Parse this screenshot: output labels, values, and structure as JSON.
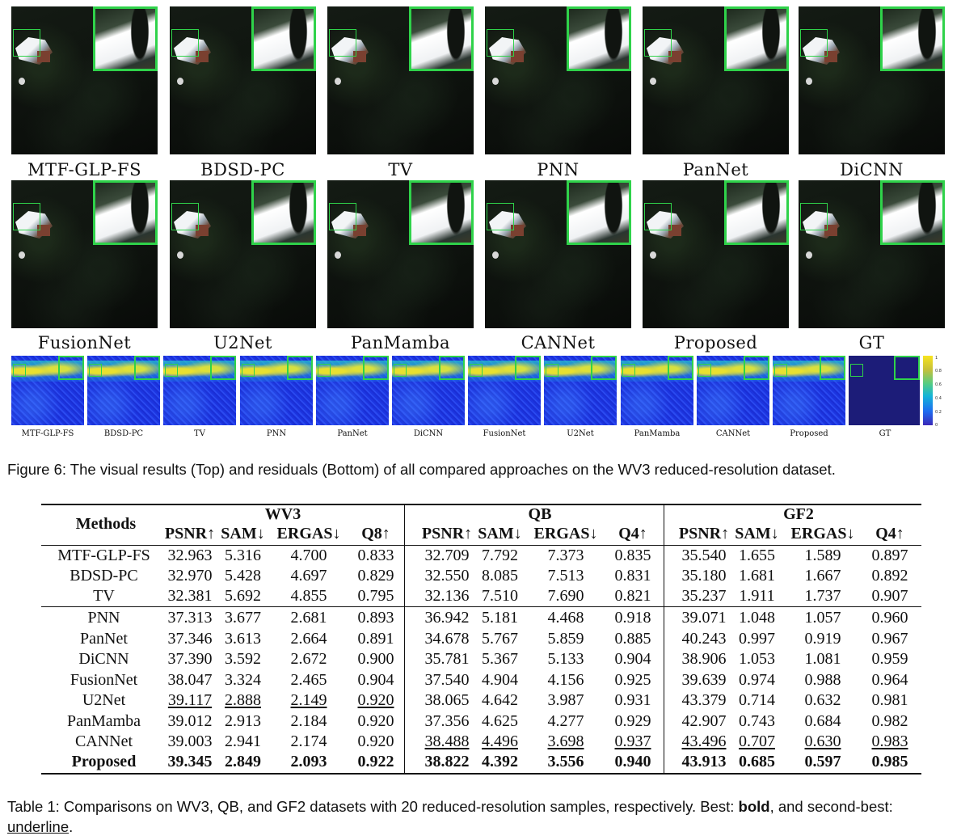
{
  "figure": {
    "visual_row1_labels": [
      "MTF-GLP-FS",
      "BDSD-PC",
      "TV",
      "PNN",
      "PanNet",
      "DiCNN"
    ],
    "visual_row2_labels": [
      "FusionNet",
      "U2Net",
      "PanMamba",
      "CANNet",
      "Proposed",
      "GT"
    ],
    "residual_labels": [
      "MTF-GLP-FS",
      "BDSD-PC",
      "TV",
      "PNN",
      "PanNet",
      "DiCNN",
      "FusionNet",
      "U2Net",
      "PanMamba",
      "CANNet",
      "Proposed",
      "GT"
    ],
    "colorbar_ticks": [
      "1",
      "0.8",
      "0.6",
      "0.4",
      "0.2",
      "0"
    ],
    "caption": "Figure 6: The visual results (Top) and residuals (Bottom) of all compared approaches on the WV3 reduced-resolution dataset."
  },
  "table": {
    "methods_header": "Methods",
    "groups": [
      {
        "name": "WV3",
        "metrics": [
          "PSNR↑",
          "SAM↓",
          "ERGAS↓",
          "Q8↑"
        ]
      },
      {
        "name": "QB",
        "metrics": [
          "PSNR↑",
          "SAM↓",
          "ERGAS↓",
          "Q4↑"
        ]
      },
      {
        "name": "GF2",
        "metrics": [
          "PSNR↑",
          "SAM↓",
          "ERGAS↓",
          "Q4↑"
        ]
      }
    ],
    "rows": [
      {
        "method": "MTF-GLP-FS",
        "values": [
          "32.963",
          "5.316",
          "4.700",
          "0.833",
          "32.709",
          "7.792",
          "7.373",
          "0.835",
          "35.540",
          "1.655",
          "1.589",
          "0.897"
        ]
      },
      {
        "method": "BDSD-PC",
        "values": [
          "32.970",
          "5.428",
          "4.697",
          "0.829",
          "32.550",
          "8.085",
          "7.513",
          "0.831",
          "35.180",
          "1.681",
          "1.667",
          "0.892"
        ]
      },
      {
        "method": "TV",
        "values": [
          "32.381",
          "5.692",
          "4.855",
          "0.795",
          "32.136",
          "7.510",
          "7.690",
          "0.821",
          "35.237",
          "1.911",
          "1.737",
          "0.907"
        ]
      },
      {
        "method": "PNN",
        "values": [
          "37.313",
          "3.677",
          "2.681",
          "0.893",
          "36.942",
          "5.181",
          "4.468",
          "0.918",
          "39.071",
          "1.048",
          "1.057",
          "0.960"
        ]
      },
      {
        "method": "PanNet",
        "values": [
          "37.346",
          "3.613",
          "2.664",
          "0.891",
          "34.678",
          "5.767",
          "5.859",
          "0.885",
          "40.243",
          "0.997",
          "0.919",
          "0.967"
        ]
      },
      {
        "method": "DiCNN",
        "values": [
          "37.390",
          "3.592",
          "2.672",
          "0.900",
          "35.781",
          "5.367",
          "5.133",
          "0.904",
          "38.906",
          "1.053",
          "1.081",
          "0.959"
        ]
      },
      {
        "method": "FusionNet",
        "values": [
          "38.047",
          "3.324",
          "2.465",
          "0.904",
          "37.540",
          "4.904",
          "4.156",
          "0.925",
          "39.639",
          "0.974",
          "0.988",
          "0.964"
        ]
      },
      {
        "method": "U2Net",
        "values": [
          "39.117",
          "2.888",
          "2.149",
          "0.920",
          "38.065",
          "4.642",
          "3.987",
          "0.931",
          "43.379",
          "0.714",
          "0.632",
          "0.981"
        ]
      },
      {
        "method": "PanMamba",
        "values": [
          "39.012",
          "2.913",
          "2.184",
          "0.920",
          "37.356",
          "4.625",
          "4.277",
          "0.929",
          "42.907",
          "0.743",
          "0.684",
          "0.982"
        ]
      },
      {
        "method": "CANNet",
        "values": [
          "39.003",
          "2.941",
          "2.174",
          "0.920",
          "38.488",
          "4.496",
          "3.698",
          "0.937",
          "43.496",
          "0.707",
          "0.630",
          "0.983"
        ]
      },
      {
        "method": "Proposed",
        "values": [
          "39.345",
          "2.849",
          "2.093",
          "0.922",
          "38.822",
          "4.392",
          "3.556",
          "0.940",
          "43.913",
          "0.685",
          "0.597",
          "0.985"
        ]
      }
    ],
    "bold_row": 10,
    "underline_cells": [
      [
        7,
        0
      ],
      [
        7,
        1
      ],
      [
        7,
        2
      ],
      [
        7,
        3
      ],
      [
        9,
        4
      ],
      [
        9,
        5
      ],
      [
        9,
        6
      ],
      [
        9,
        7
      ],
      [
        9,
        8
      ],
      [
        9,
        9
      ],
      [
        9,
        10
      ],
      [
        9,
        11
      ]
    ],
    "caption_parts": {
      "prefix": "Table 1: Comparisons on WV3, QB, and GF2 datasets with 20 reduced-resolution samples, respectively. Best: ",
      "bold_word": "bold",
      "middle": ", and second-best: ",
      "underline_word": "underline",
      "suffix": "."
    }
  }
}
